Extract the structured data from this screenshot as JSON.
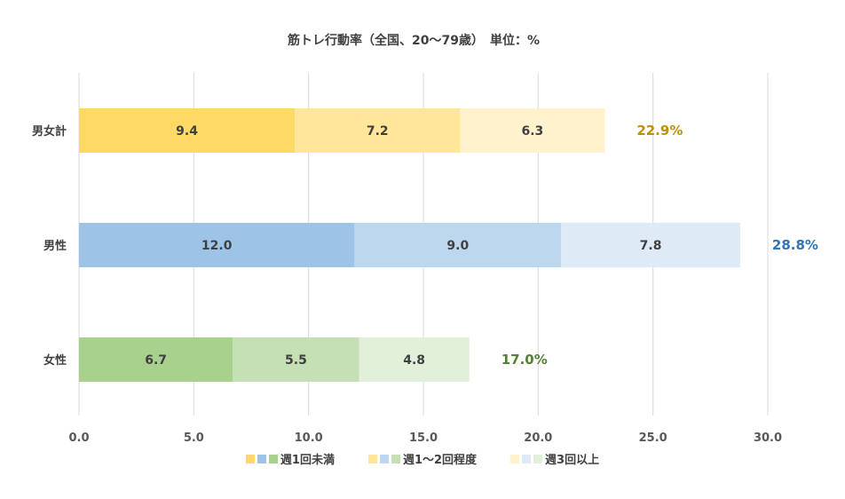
{
  "chart_data": {
    "type": "bar",
    "orientation": "horizontal",
    "stacked": true,
    "title": "筋トレ行動率（全国、20～79歳）　単位：%",
    "categories": [
      "男女計",
      "男性",
      "女性"
    ],
    "series": [
      {
        "name": "週1回未満",
        "values": [
          9.4,
          12.0,
          6.7
        ]
      },
      {
        "name": "週1～2回程度",
        "values": [
          7.2,
          9.0,
          5.5
        ]
      },
      {
        "name": "週3回以上",
        "values": [
          6.3,
          7.8,
          4.8
        ]
      }
    ],
    "segment_labels": [
      [
        "9.4",
        "7.2",
        "6.3"
      ],
      [
        "12.0",
        "9.0",
        "7.8"
      ],
      [
        "6.7",
        "5.5",
        "4.8"
      ]
    ],
    "totals": [
      22.9,
      28.8,
      17.0
    ],
    "total_labels": [
      "22.9%",
      "28.8%",
      "17.0%"
    ],
    "xlim": [
      0,
      30
    ],
    "xticks": [
      0,
      5,
      10,
      15,
      20,
      25,
      30
    ],
    "xtick_labels": [
      "0.0",
      "5.0",
      "10.0",
      "15.0",
      "20.0",
      "25.0",
      "30.0"
    ],
    "grid": true,
    "legend_position": "bottom",
    "colors": {
      "男女計": [
        "#ffd966",
        "#ffe699",
        "#fff2cc"
      ],
      "男性": [
        "#9dc3e6",
        "#bdd7ee",
        "#deebf7"
      ],
      "女性": [
        "#a9d18e",
        "#c5e0b4",
        "#e2f0d9"
      ]
    },
    "total_colors": [
      "#bf9000",
      "#2e75b6",
      "#548235"
    ]
  }
}
